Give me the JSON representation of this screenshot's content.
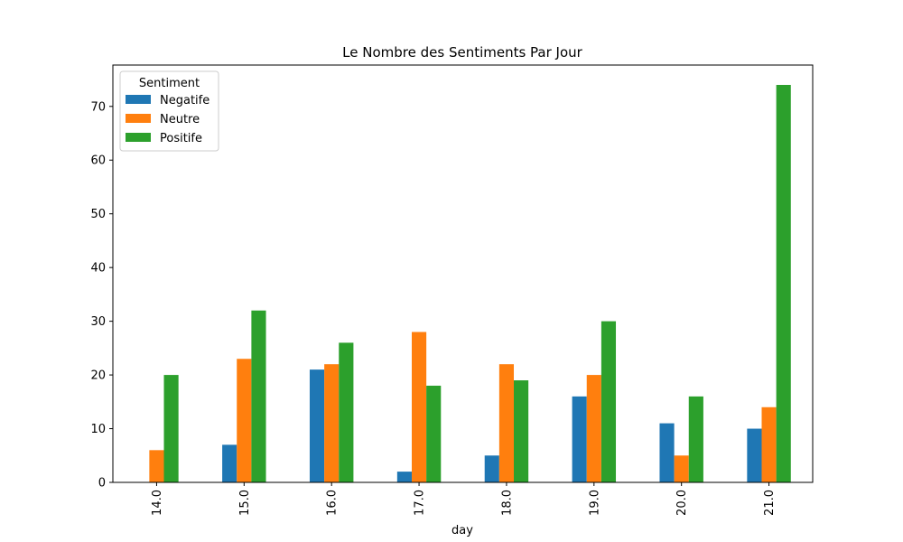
{
  "chart_data": {
    "type": "bar",
    "title": "Le Nombre des Sentiments Par Jour",
    "xlabel": "day",
    "ylabel": "",
    "categories": [
      "14.0",
      "15.0",
      "16.0",
      "17.0",
      "18.0",
      "19.0",
      "20.0",
      "21.0"
    ],
    "series": [
      {
        "name": "Negatife",
        "color": "#1f77b4",
        "values": [
          0,
          7,
          21,
          2,
          5,
          16,
          11,
          10
        ]
      },
      {
        "name": "Neutre",
        "color": "#ff7f0e",
        "values": [
          6,
          23,
          22,
          28,
          22,
          20,
          5,
          14
        ]
      },
      {
        "name": "Positife",
        "color": "#2ca02c",
        "values": [
          20,
          32,
          26,
          18,
          19,
          30,
          16,
          74
        ]
      }
    ],
    "ylim": [
      0,
      77.7
    ],
    "yticks": [
      0,
      10,
      20,
      30,
      40,
      50,
      60,
      70
    ],
    "grid": false,
    "legend": {
      "title": "Sentiment",
      "placement": "top-left"
    },
    "x_tick_rotation": "vertical"
  }
}
